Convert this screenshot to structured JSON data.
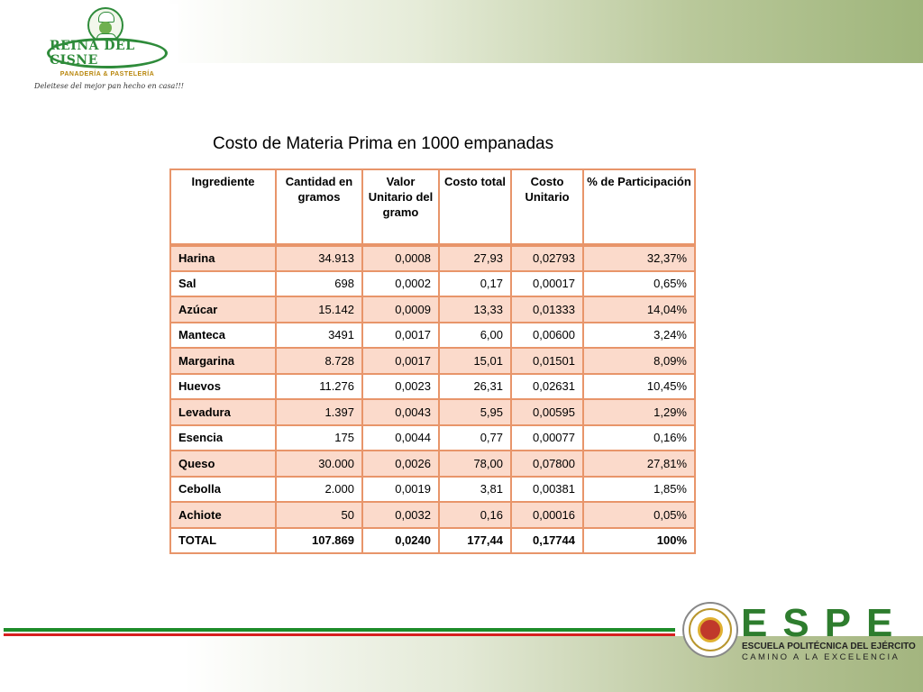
{
  "header": {
    "logo_name": "REINA DEL CISNE",
    "logo_subtitle": "PANADERÍA & PASTELERÍA",
    "logo_tagline": "Deleitese del mejor pan hecho en casa!!!"
  },
  "title": "Costo de Materia Prima en 1000 empanadas",
  "table": {
    "columns": [
      "Ingrediente",
      "Cantidad en gramos",
      "Valor Unitario del gramo",
      "Costo total",
      "Costo Unitario",
      "% de Participación"
    ],
    "rows": [
      [
        "Harina",
        "34.913",
        "0,0008",
        "27,93",
        "0,02793",
        "32,37%"
      ],
      [
        "Sal",
        "698",
        "0,0002",
        "0,17",
        "0,00017",
        "0,65%"
      ],
      [
        "Azúcar",
        "15.142",
        "0,0009",
        "13,33",
        "0,01333",
        "14,04%"
      ],
      [
        "Manteca",
        "3491",
        "0,0017",
        "6,00",
        "0,00600",
        "3,24%"
      ],
      [
        "Margarina",
        "8.728",
        "0,0017",
        "15,01",
        "0,01501",
        "8,09%"
      ],
      [
        "Huevos",
        "11.276",
        "0,0023",
        "26,31",
        "0,02631",
        "10,45%"
      ],
      [
        "Levadura",
        "1.397",
        "0,0043",
        "5,95",
        "0,00595",
        "1,29%"
      ],
      [
        "Esencia",
        "175",
        "0,0044",
        "0,77",
        "0,00077",
        "0,16%"
      ],
      [
        "Queso",
        "30.000",
        "0,0026",
        "78,00",
        "0,07800",
        "27,81%"
      ],
      [
        "Cebolla",
        "2.000",
        "0,0019",
        "3,81",
        "0,00381",
        "1,85%"
      ],
      [
        "Achiote",
        "50",
        "0,0032",
        "0,16",
        "0,00016",
        "0,05%"
      ]
    ],
    "total": [
      "TOTAL",
      "107.869",
      "0,0240",
      "177,44",
      "0,17744",
      "100%"
    ]
  },
  "footer": {
    "espe_letters": "ESPE",
    "espe_name": "ESCUELA POLITÉCNICA DEL EJÉRCITO",
    "espe_motto": "CAMINO A LA EXCELENCIA"
  },
  "colors": {
    "table_border": "#e8956a",
    "row_shade": "#fbdacb",
    "brand_green": "#2e8b3a",
    "stripe_red": "#d61f1f"
  },
  "icons": [
    "chef-logo-icon",
    "espe-seal-icon"
  ]
}
